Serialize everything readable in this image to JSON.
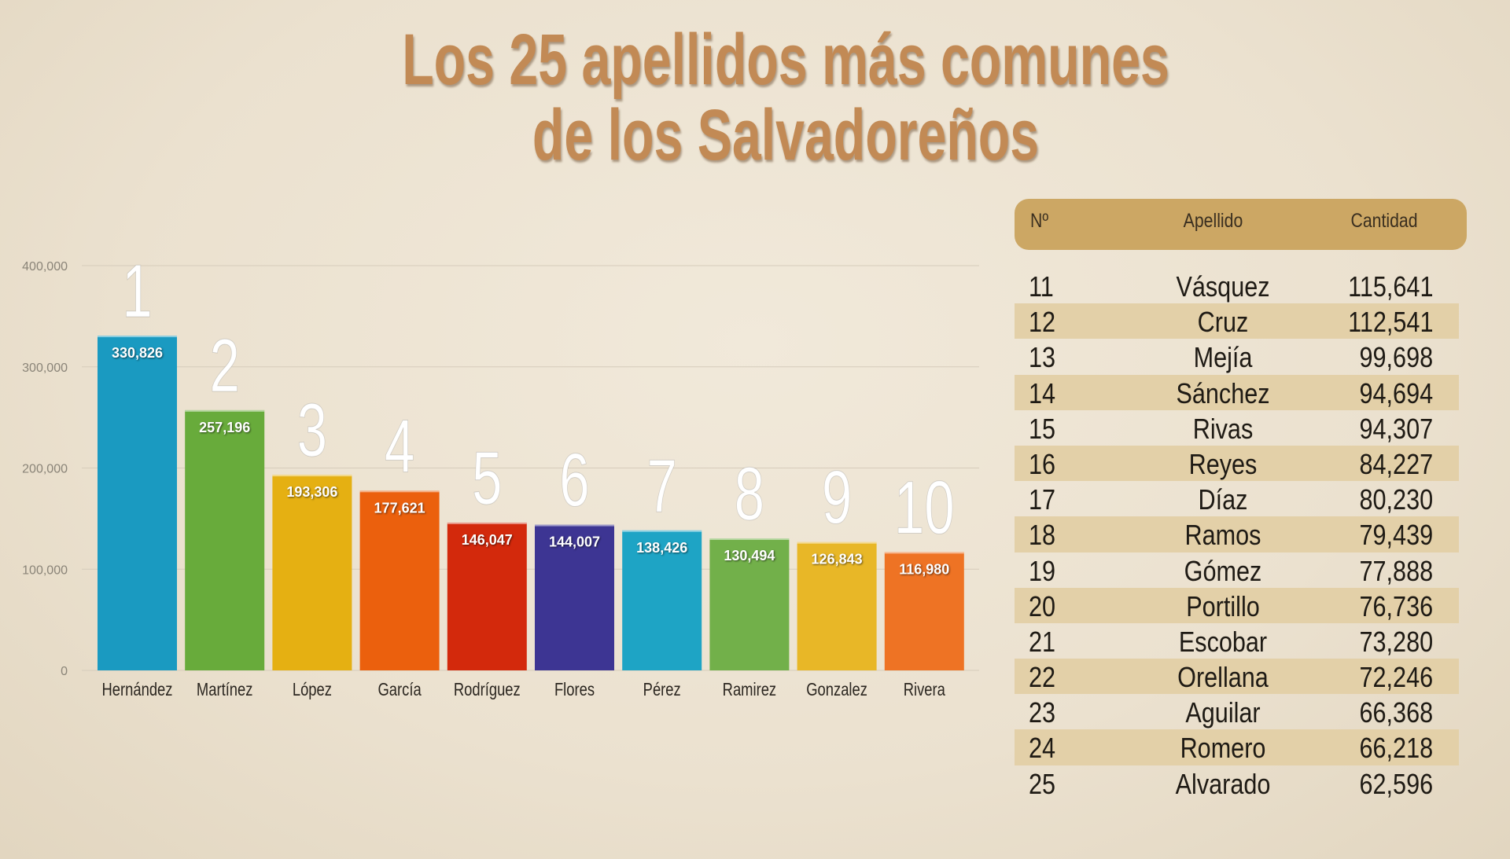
{
  "title": {
    "line1": "Los 25  apellidos más comunes",
    "line2": "de los Salvadoreños"
  },
  "chart_data": {
    "type": "bar",
    "categories": [
      "Hernández",
      "Martínez",
      "López",
      "García",
      "Rodríguez",
      "Flores",
      "Pérez",
      "Ramirez",
      "Gonzalez",
      "Rivera"
    ],
    "values": [
      330826,
      257196,
      193306,
      177621,
      146047,
      144007,
      138426,
      130494,
      126843,
      116980
    ],
    "value_labels": [
      "330,826",
      "257,196",
      "193,306",
      "177,621",
      "146,047",
      "144,007",
      "138,426",
      "130,494",
      "126,843",
      "116,980"
    ],
    "ranks": [
      "1",
      "2",
      "3",
      "4",
      "5",
      "6",
      "7",
      "8",
      "9",
      "10"
    ],
    "colors": [
      "#1a9ac1",
      "#68ab3b",
      "#e5b012",
      "#eb600d",
      "#d3290c",
      "#3d3593",
      "#1ea4c5",
      "#72b04a",
      "#e8b727",
      "#ee7324"
    ],
    "yticks": [
      0,
      100000,
      200000,
      300000,
      400000
    ],
    "ytick_labels": [
      "0",
      "100,000",
      "200,000",
      "300,000",
      "400,000"
    ],
    "ylim": [
      0,
      400000
    ],
    "grid": true,
    "title": "",
    "xlabel": "",
    "ylabel": ""
  },
  "table": {
    "headers": [
      "Nº",
      "Apellido",
      "Cantidad"
    ],
    "rows": [
      [
        "11",
        "Vásquez",
        "115,641"
      ],
      [
        "12",
        "Cruz",
        "112,541"
      ],
      [
        "13",
        "Mejía",
        "99,698"
      ],
      [
        "14",
        "Sánchez",
        "94,694"
      ],
      [
        "15",
        "Rivas",
        "94,307"
      ],
      [
        "16",
        "Reyes",
        "84,227"
      ],
      [
        "17",
        "Díaz",
        "80,230"
      ],
      [
        "18",
        "Ramos",
        "79,439"
      ],
      [
        "19",
        "Gómez",
        "77,888"
      ],
      [
        "20",
        "Portillo",
        "76,736"
      ],
      [
        "21",
        "Escobar",
        "73,280"
      ],
      [
        "22",
        "Orellana",
        "72,246"
      ],
      [
        "23",
        "Aguilar",
        "66,368"
      ],
      [
        "24",
        "Romero",
        "66,218"
      ],
      [
        "25",
        "Alvarado",
        "62,596"
      ]
    ],
    "header_color": "#cca764",
    "band_color": "#e3d0a8"
  }
}
